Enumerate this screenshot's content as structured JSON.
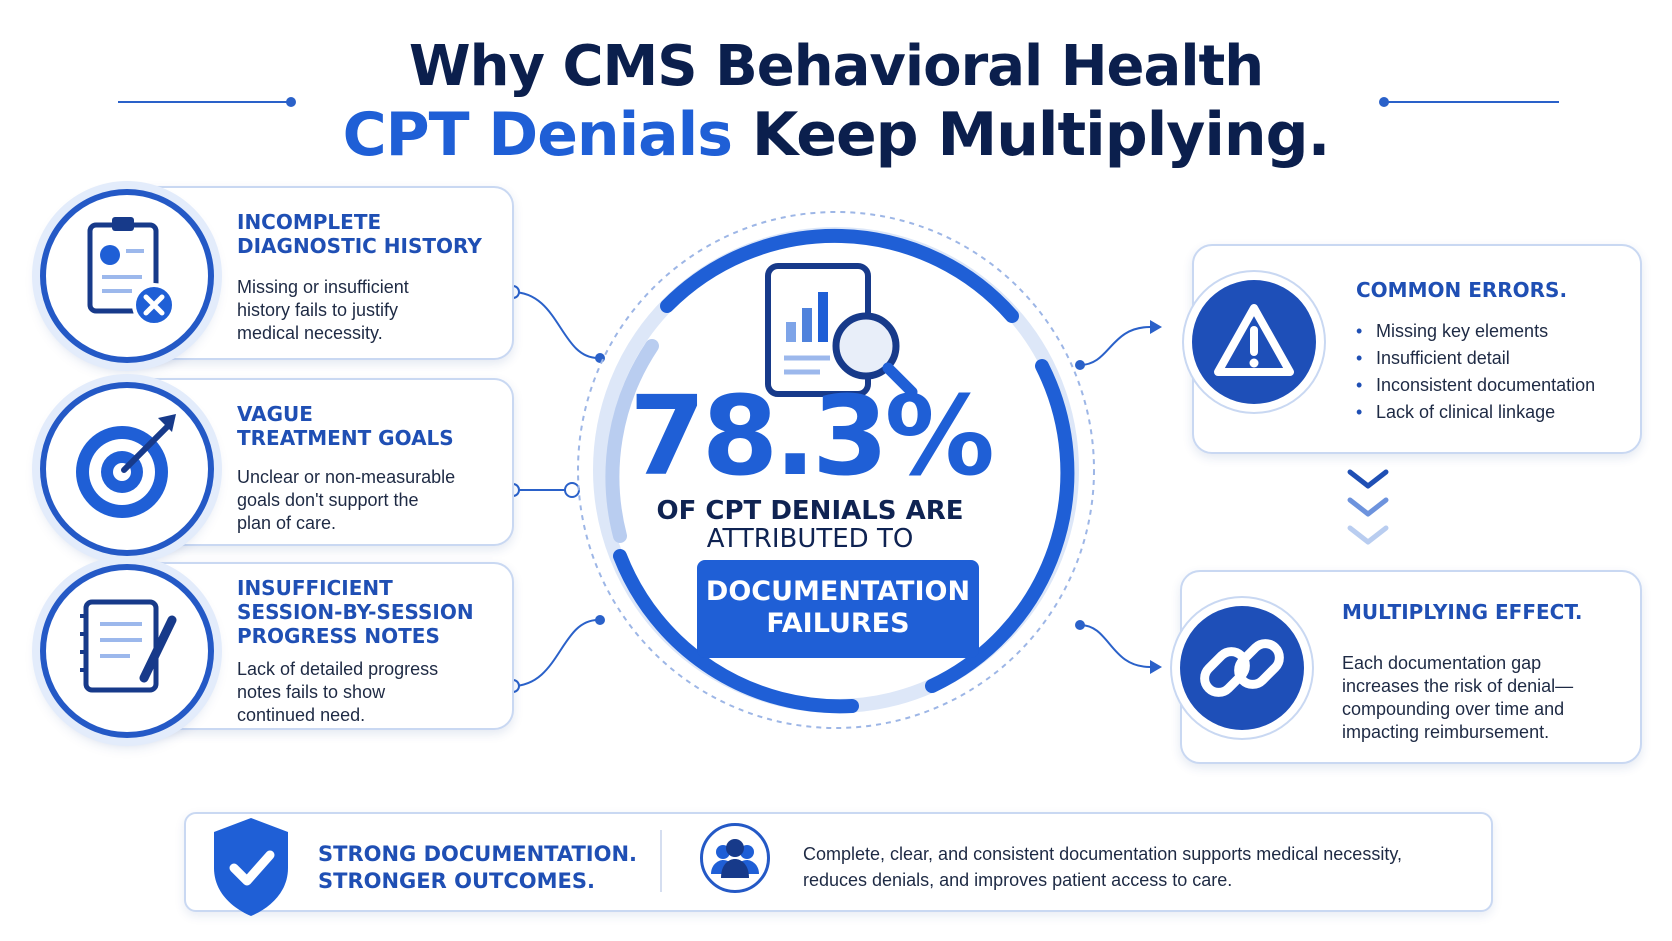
{
  "title": {
    "line1": "Why CMS Behavioral Health",
    "line2_accent": "CPT Denials",
    "line2_rest": " Keep Multiplying."
  },
  "center": {
    "stat": "78.3%",
    "line1": "OF CPT DENIALS ARE",
    "line2": "ATTRIBUTED TO",
    "highlight": "DOCUMENTATION\nFAILURES",
    "icon": "report-magnifier-icon"
  },
  "left_cards": [
    {
      "heading": "INCOMPLETE\nDIAGNOSTIC HISTORY",
      "text": "Missing or insufficient\nhistory fails to justify\nmedical necessity.",
      "icon": "clipboard-x-icon"
    },
    {
      "heading": "VAGUE\nTREATMENT GOALS",
      "text": "Unclear or non-measurable\ngoals don't support the\nplan of care.",
      "icon": "target-icon"
    },
    {
      "heading": "INSUFFICIENT\nSESSION-BY-SESSION\nPROGRESS NOTES",
      "text": "Lack of detailed progress\nnotes fails to show\ncontinued need.",
      "icon": "notepad-pen-icon"
    }
  ],
  "right_top": {
    "heading": "COMMON ERRORS.",
    "items": [
      "Missing key elements",
      "Insufficient detail",
      "Inconsistent documentation",
      "Lack of clinical linkage"
    ],
    "icon": "warning-icon"
  },
  "right_bottom": {
    "heading": "MULTIPLYING EFFECT.",
    "text": "Each documentation gap\nincreases the risk of denial—\ncompounding over time and\nimpacting reimbursement.",
    "icon": "chain-link-icon"
  },
  "bottom": {
    "heading": "STRONG DOCUMENTATION.\nSTRONGER OUTCOMES.",
    "text": "Complete, clear, and consistent documentation supports medical necessity,\nreduces denials, and improves patient access to care.",
    "shield_icon": "shield-check-icon",
    "people_icon": "people-group-icon"
  },
  "colors": {
    "primary": "#1f5fd6",
    "navy": "#0b1f4d",
    "dark_blue": "#1e4fb8",
    "light_blue": "#c9d8f2"
  }
}
